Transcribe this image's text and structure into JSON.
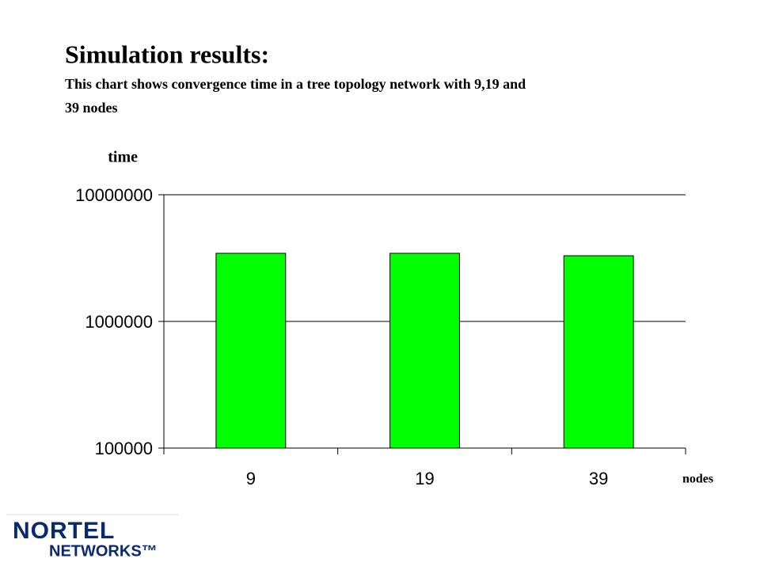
{
  "chart_data": {
    "type": "bar",
    "title": "Simulation results:",
    "subtitle_lines": [
      "This chart shows convergence time in a tree topology network with 9,19 and",
      "39  nodes"
    ],
    "y_label": "time",
    "x_label": "nodes",
    "categories": [
      "9",
      "19",
      "39"
    ],
    "values": [
      3450000,
      3450000,
      3300000
    ],
    "color": "#00ff00",
    "log_y": true,
    "ylim": [
      100000,
      10000000
    ],
    "yticks": [
      100000,
      1000000,
      10000000
    ],
    "grid": true
  },
  "logo": {
    "line1": "NORTEL",
    "line2": "NETWORKS™"
  }
}
